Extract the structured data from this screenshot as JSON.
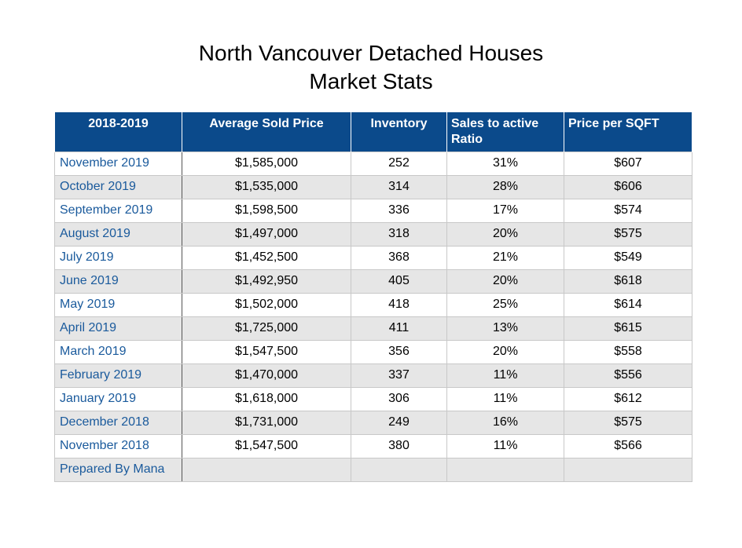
{
  "chart_data": {
    "type": "table",
    "title": [
      "North Vancouver Detached Houses",
      "Market Stats"
    ],
    "columns": [
      "2018-2019",
      "Average Sold Price",
      "Inventory",
      "Sales to active Ratio",
      "Price per SQFT"
    ],
    "rows": [
      [
        "November 2019",
        "$1,585,000",
        "252",
        "31%",
        "$607"
      ],
      [
        "October 2019",
        "$1,535,000",
        "314",
        "28%",
        "$606"
      ],
      [
        "September 2019",
        "$1,598,500",
        "336",
        "17%",
        "$574"
      ],
      [
        "August 2019",
        "$1,497,000",
        "318",
        "20%",
        "$575"
      ],
      [
        "July 2019",
        "$1,452,500",
        "368",
        "21%",
        "$549"
      ],
      [
        "June 2019",
        "$1,492,950",
        "405",
        "20%",
        "$618"
      ],
      [
        "May 2019",
        "$1,502,000",
        "418",
        "25%",
        "$614"
      ],
      [
        "April 2019",
        "$1,725,000",
        "411",
        "13%",
        "$615"
      ],
      [
        "March 2019",
        "$1,547,500",
        "356",
        "20%",
        "$558"
      ],
      [
        "February 2019",
        "$1,470,000",
        "337",
        "11%",
        "$556"
      ],
      [
        "January 2019",
        "$1,618,000",
        "306",
        "11%",
        "$612"
      ],
      [
        "December 2018",
        "$1,731,000",
        "249",
        "16%",
        "$575"
      ],
      [
        "November 2018",
        "$1,547,500",
        "380",
        "11%",
        "$566"
      ],
      [
        "Prepared By Mana",
        "",
        "",
        "",
        ""
      ]
    ]
  },
  "colors": {
    "header_bg": "#0b4a8b",
    "header_text": "#ffffff",
    "month_text": "#1a5a9c",
    "stripe": "#e6e6e6"
  }
}
